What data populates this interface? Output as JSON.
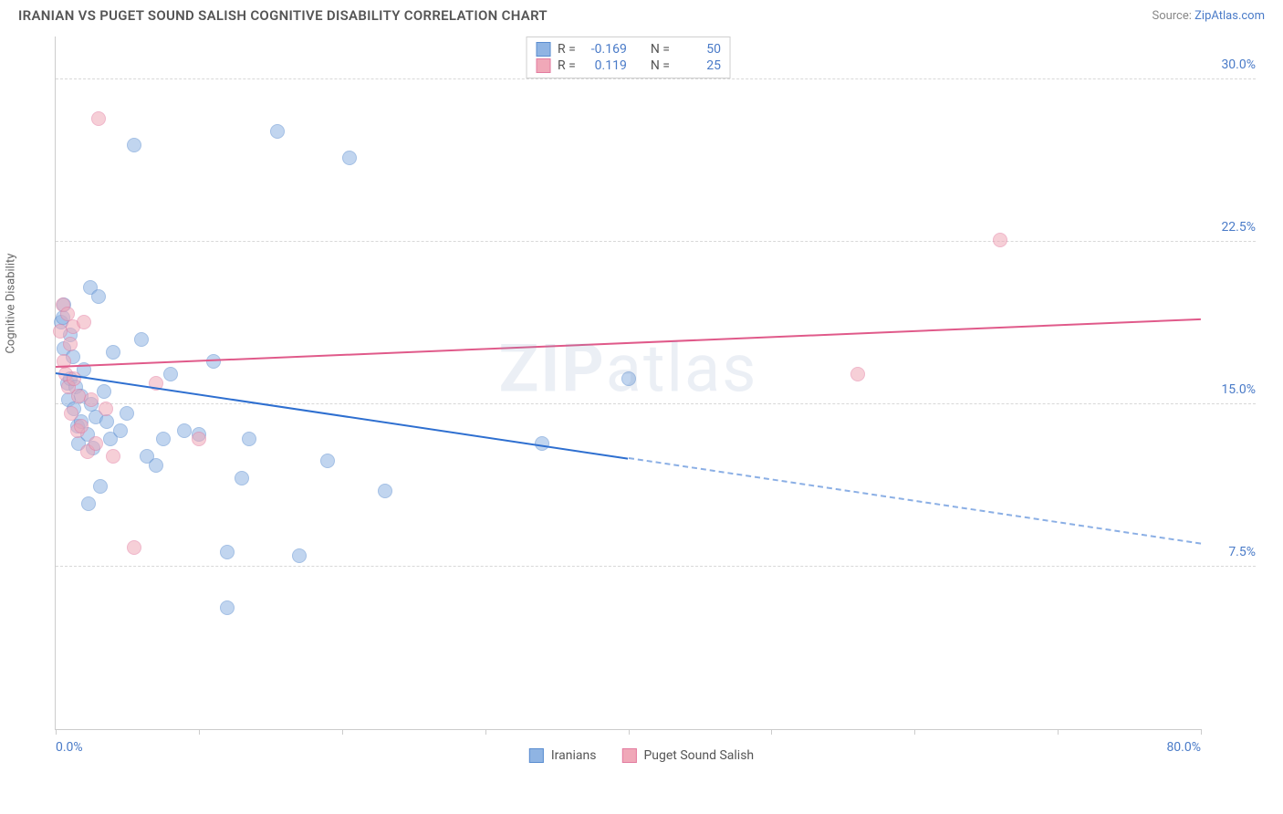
{
  "title": "IRANIAN VS PUGET SOUND SALISH COGNITIVE DISABILITY CORRELATION CHART",
  "source_prefix": "Source: ",
  "source_name": "ZipAtlas.com",
  "ylabel": "Cognitive Disability",
  "watermark_a": "ZIP",
  "watermark_b": "atlas",
  "chart": {
    "type": "scatter",
    "xlim": [
      0,
      80
    ],
    "ylim": [
      0,
      32
    ],
    "x_ticks": [
      0,
      10,
      20,
      30,
      40,
      50,
      60,
      70,
      80
    ],
    "x_tick_labels": {
      "0": "0.0%",
      "80": "80.0%"
    },
    "y_gridlines": [
      7.5,
      15.0,
      22.5,
      30.0
    ],
    "y_tick_labels": [
      "7.5%",
      "15.0%",
      "22.5%",
      "30.0%"
    ],
    "background_color": "#ffffff",
    "grid_color": "#d8d8d8",
    "axis_color": "#cccccc",
    "marker_radius": 8,
    "marker_opacity": 0.55,
    "series": [
      {
        "name": "Iranians",
        "color_fill": "#8fb4e3",
        "color_stroke": "#5a8dd0",
        "r_value": "-0.169",
        "n_value": "50",
        "trend": {
          "x1": 0,
          "y1": 16.5,
          "x2": 80,
          "y2": 8.6,
          "solid_until_x": 40,
          "color": "#2e6fd0"
        },
        "points": [
          [
            0.4,
            18.8
          ],
          [
            0.5,
            19.0
          ],
          [
            0.6,
            19.6
          ],
          [
            0.6,
            17.6
          ],
          [
            0.8,
            16.0
          ],
          [
            0.9,
            15.2
          ],
          [
            1.0,
            18.2
          ],
          [
            1.0,
            16.2
          ],
          [
            1.2,
            17.2
          ],
          [
            1.3,
            14.8
          ],
          [
            1.4,
            15.8
          ],
          [
            1.5,
            14.0
          ],
          [
            1.6,
            13.2
          ],
          [
            1.8,
            15.4
          ],
          [
            1.8,
            14.2
          ],
          [
            2.0,
            16.6
          ],
          [
            2.2,
            13.6
          ],
          [
            2.3,
            10.4
          ],
          [
            2.4,
            20.4
          ],
          [
            2.5,
            15.0
          ],
          [
            2.6,
            13.0
          ],
          [
            2.8,
            14.4
          ],
          [
            3.0,
            20.0
          ],
          [
            3.1,
            11.2
          ],
          [
            3.4,
            15.6
          ],
          [
            3.6,
            14.2
          ],
          [
            3.8,
            13.4
          ],
          [
            4.0,
            17.4
          ],
          [
            4.5,
            13.8
          ],
          [
            5.0,
            14.6
          ],
          [
            5.5,
            27.0
          ],
          [
            6.0,
            18.0
          ],
          [
            6.4,
            12.6
          ],
          [
            7.0,
            12.2
          ],
          [
            7.5,
            13.4
          ],
          [
            8.0,
            16.4
          ],
          [
            9.0,
            13.8
          ],
          [
            10.0,
            13.6
          ],
          [
            11.0,
            17.0
          ],
          [
            12.0,
            5.6
          ],
          [
            12.0,
            8.2
          ],
          [
            13.0,
            11.6
          ],
          [
            13.5,
            13.4
          ],
          [
            15.5,
            27.6
          ],
          [
            17.0,
            8.0
          ],
          [
            19.0,
            12.4
          ],
          [
            20.5,
            26.4
          ],
          [
            23.0,
            11.0
          ],
          [
            34.0,
            13.2
          ],
          [
            40.0,
            16.2
          ]
        ]
      },
      {
        "name": "Puget Sound Salish",
        "color_fill": "#f0a8b8",
        "color_stroke": "#e37ca0",
        "r_value": "0.119",
        "n_value": "25",
        "trend": {
          "x1": 0,
          "y1": 16.8,
          "x2": 80,
          "y2": 19.0,
          "solid_until_x": 80,
          "color": "#e05a8a"
        },
        "points": [
          [
            0.3,
            18.4
          ],
          [
            0.5,
            19.6
          ],
          [
            0.6,
            17.0
          ],
          [
            0.7,
            16.4
          ],
          [
            0.8,
            19.2
          ],
          [
            0.9,
            15.8
          ],
          [
            1.0,
            17.8
          ],
          [
            1.1,
            14.6
          ],
          [
            1.2,
            18.6
          ],
          [
            1.3,
            16.2
          ],
          [
            1.5,
            13.8
          ],
          [
            1.6,
            15.4
          ],
          [
            1.8,
            14.0
          ],
          [
            2.0,
            18.8
          ],
          [
            2.2,
            12.8
          ],
          [
            2.5,
            15.2
          ],
          [
            2.8,
            13.2
          ],
          [
            3.0,
            28.2
          ],
          [
            3.5,
            14.8
          ],
          [
            4.0,
            12.6
          ],
          [
            5.5,
            8.4
          ],
          [
            7.0,
            16.0
          ],
          [
            10.0,
            13.4
          ],
          [
            56.0,
            16.4
          ],
          [
            66.0,
            22.6
          ]
        ]
      }
    ]
  },
  "legend_top": {
    "r_label": "R =",
    "n_label": "N ="
  },
  "legend_bottom": [
    {
      "swatch_fill": "#8fb4e3",
      "swatch_stroke": "#5a8dd0",
      "label": "Iranians"
    },
    {
      "swatch_fill": "#f0a8b8",
      "swatch_stroke": "#e37ca0",
      "label": "Puget Sound Salish"
    }
  ]
}
